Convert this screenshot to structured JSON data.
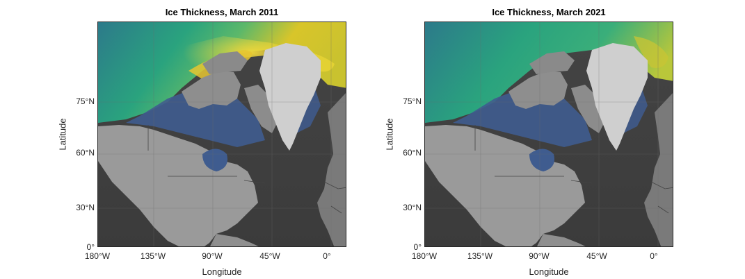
{
  "panels": [
    {
      "title": "Ice Thickness, March 2011",
      "xlabel": "Longitude",
      "ylabel": "Latitude",
      "xticks": [
        "180°W",
        "135°W",
        "90°W",
        "45°W",
        "0°"
      ],
      "yticks": [
        "75°N",
        "60°N",
        "30°N",
        "0°"
      ]
    },
    {
      "title": "Ice Thickness, March 2021",
      "xlabel": "Longitude",
      "ylabel": "Latitude",
      "xticks": [
        "180°W",
        "135°W",
        "90°W",
        "45°W",
        "0°"
      ],
      "yticks": [
        "75°N",
        "60°N",
        "30°N",
        "0°"
      ]
    }
  ],
  "colors": {
    "land": "#9a9a9a",
    "ocean": "#3a3a3a",
    "greenland": "#cfcfcf",
    "ice_low": "#2d6e8e",
    "ice_mid": "#2aa37e",
    "ice_high": "#d8c52a",
    "ice_max": "#f2e236",
    "open_water_edge": "#3f5c8f"
  }
}
